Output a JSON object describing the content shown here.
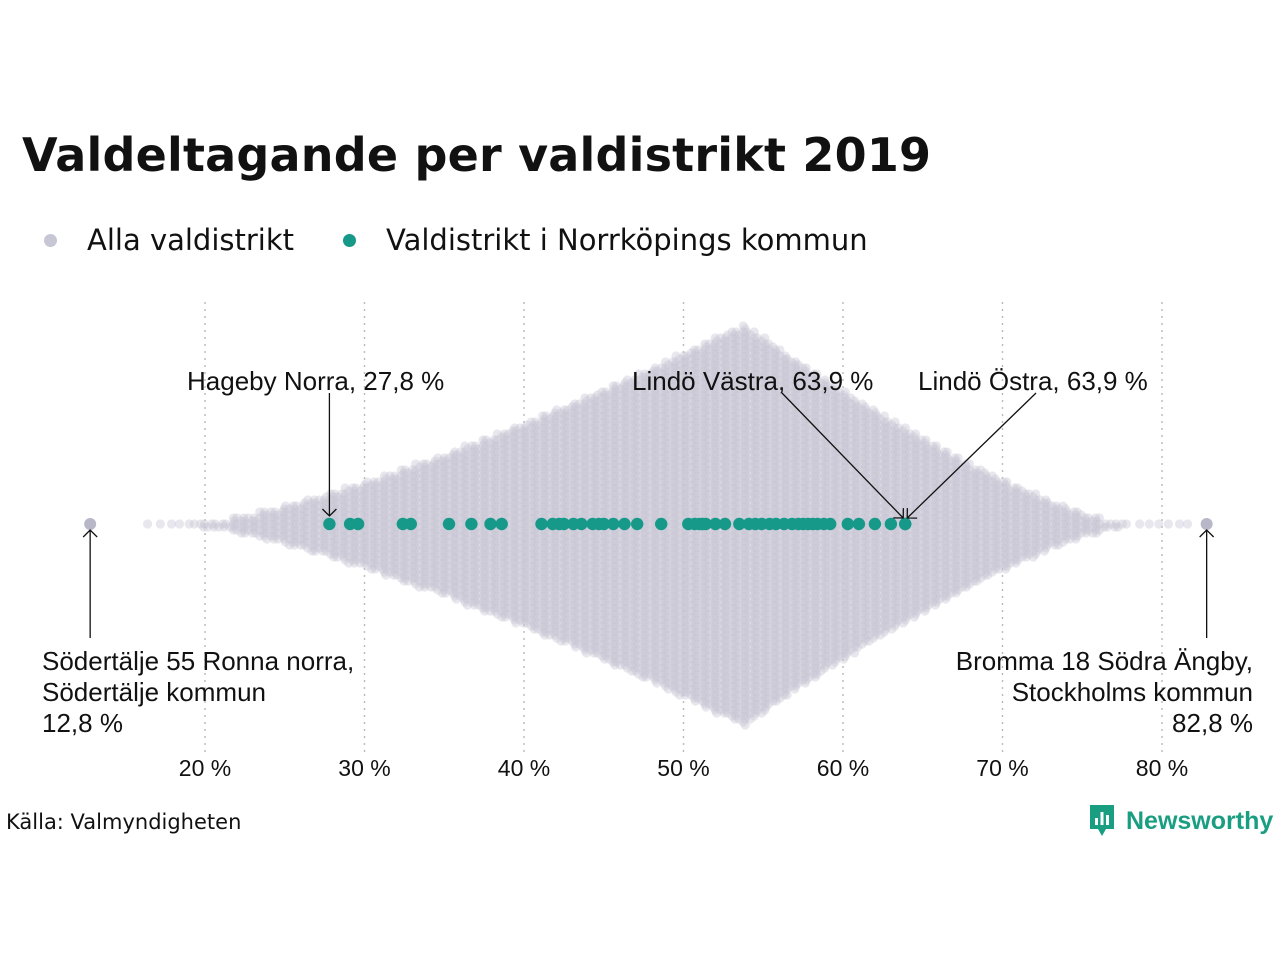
{
  "title": "Valdeltagande per valdistrikt 2019",
  "legend": [
    {
      "label": "Alla valdistrikt",
      "color": "#c7c6d4"
    },
    {
      "label": "Valdistrikt i Norrköpings kommun",
      "color": "#17998a"
    }
  ],
  "annotations": {
    "hageby": {
      "text": "Hageby Norra, 27,8 %",
      "value": 27.8
    },
    "lindo_vastra": {
      "text": "Lindö Västra, 63,9 %",
      "value": 63.9
    },
    "lindo_ostra": {
      "text": "Lindö Östra, 63,9 %",
      "value": 63.9
    },
    "min": {
      "lines": [
        "Södertälje 55 Ronna norra,",
        "Södertälje kommun",
        "12,8 %"
      ],
      "value": 12.8
    },
    "max": {
      "lines": [
        "Bromma 18 Södra Ängby,",
        "Stockholms kommun",
        "82,8 %"
      ],
      "value": 82.8
    }
  },
  "source": "Källa: Valmyndigheten",
  "logo": {
    "text": "Newsworthy",
    "icon": "bar-chart-icon",
    "color": "#1a9e82"
  },
  "chart_data": {
    "type": "scatter",
    "subtype": "beeswarm",
    "xlim": [
      13,
      83
    ],
    "x_ticks": [
      20,
      30,
      40,
      50,
      60,
      70,
      80
    ],
    "x_tick_labels": [
      "20 %",
      "30 %",
      "40 %",
      "50 %",
      "60 %",
      "70 %",
      "80 %"
    ],
    "grid": "vertical-dotted",
    "legend_position": "top-left",
    "series": [
      {
        "name": "Alla valdistrikt",
        "color": "#c7c6d4",
        "distribution": {
          "min": 12.8,
          "max": 82.8,
          "mode": 53.8
        },
        "values": [
          12.8,
          82.8
        ]
      },
      {
        "name": "Valdistrikt i Norrköpings kommun",
        "color": "#17998a",
        "values": [
          27.8,
          29.1,
          29.6,
          32.4,
          32.9,
          35.3,
          36.7,
          37.9,
          38.6,
          41.1,
          41.8,
          42.2,
          42.5,
          43.1,
          43.6,
          44.3,
          44.7,
          45.0,
          45.6,
          46.3,
          47.1,
          48.6,
          50.3,
          50.7,
          51.0,
          51.2,
          51.4,
          52.0,
          52.6,
          53.5,
          54.1,
          54.5,
          54.9,
          55.4,
          55.8,
          56.3,
          56.8,
          57.2,
          57.5,
          57.8,
          58.1,
          58.4,
          58.8,
          59.2,
          60.3,
          61.0,
          62.0,
          63.0,
          63.9,
          63.9
        ]
      }
    ]
  }
}
